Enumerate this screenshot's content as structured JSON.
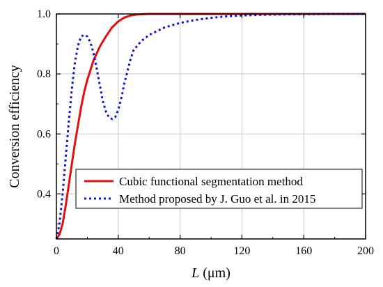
{
  "chart_data": {
    "type": "line",
    "xlabel": "L (μm)",
    "xlabel_italic_part": "L",
    "xlabel_unit_part": " (μm)",
    "ylabel": "Conversion efficiency",
    "xlim": [
      0,
      200
    ],
    "ylim": [
      0.25,
      1.0
    ],
    "x_ticks": [
      0,
      40,
      80,
      120,
      160,
      200
    ],
    "y_ticks": [
      0.4,
      0.6,
      0.8,
      1.0
    ],
    "x_tick_labels": [
      "0",
      "40",
      "80",
      "120",
      "160",
      "200"
    ],
    "y_tick_labels": [
      "0.4",
      "0.6",
      "0.8",
      "1.0"
    ],
    "grid": true,
    "legend_position": "lower-right",
    "series": [
      {
        "name": "Cubic functional segmentation method",
        "color": "#e01010",
        "style": "solid",
        "x": [
          0,
          2,
          4,
          6,
          8,
          10,
          12,
          14,
          16,
          18,
          20,
          24,
          28,
          32,
          36,
          40,
          44,
          48,
          52,
          56,
          60,
          70,
          80,
          100,
          120,
          140,
          160,
          180,
          200
        ],
        "y": [
          0.25,
          0.265,
          0.3,
          0.36,
          0.43,
          0.5,
          0.57,
          0.63,
          0.69,
          0.74,
          0.78,
          0.845,
          0.89,
          0.925,
          0.955,
          0.975,
          0.988,
          0.995,
          0.998,
          0.999,
          1.0,
          1.0,
          1.0,
          1.0,
          1.0,
          1.0,
          1.0,
          1.0,
          1.0
        ]
      },
      {
        "name": "Method proposed by J. Guo et al. in 2015",
        "color": "#1010e0",
        "style": "dotted",
        "x": [
          0,
          2,
          4,
          6,
          8,
          10,
          12,
          14,
          16,
          18,
          20,
          22,
          24,
          26,
          28,
          30,
          32,
          34,
          36,
          38,
          40,
          42,
          44,
          46,
          48,
          50,
          55,
          60,
          70,
          80,
          90,
          100,
          110,
          120,
          140,
          160,
          180,
          200
        ],
        "y": [
          0.25,
          0.3,
          0.4,
          0.52,
          0.64,
          0.75,
          0.84,
          0.895,
          0.925,
          0.93,
          0.925,
          0.905,
          0.87,
          0.82,
          0.765,
          0.71,
          0.675,
          0.655,
          0.65,
          0.655,
          0.68,
          0.72,
          0.77,
          0.81,
          0.85,
          0.88,
          0.91,
          0.93,
          0.955,
          0.97,
          0.98,
          0.987,
          0.992,
          0.995,
          0.998,
          0.999,
          1.0,
          1.0
        ]
      }
    ]
  }
}
